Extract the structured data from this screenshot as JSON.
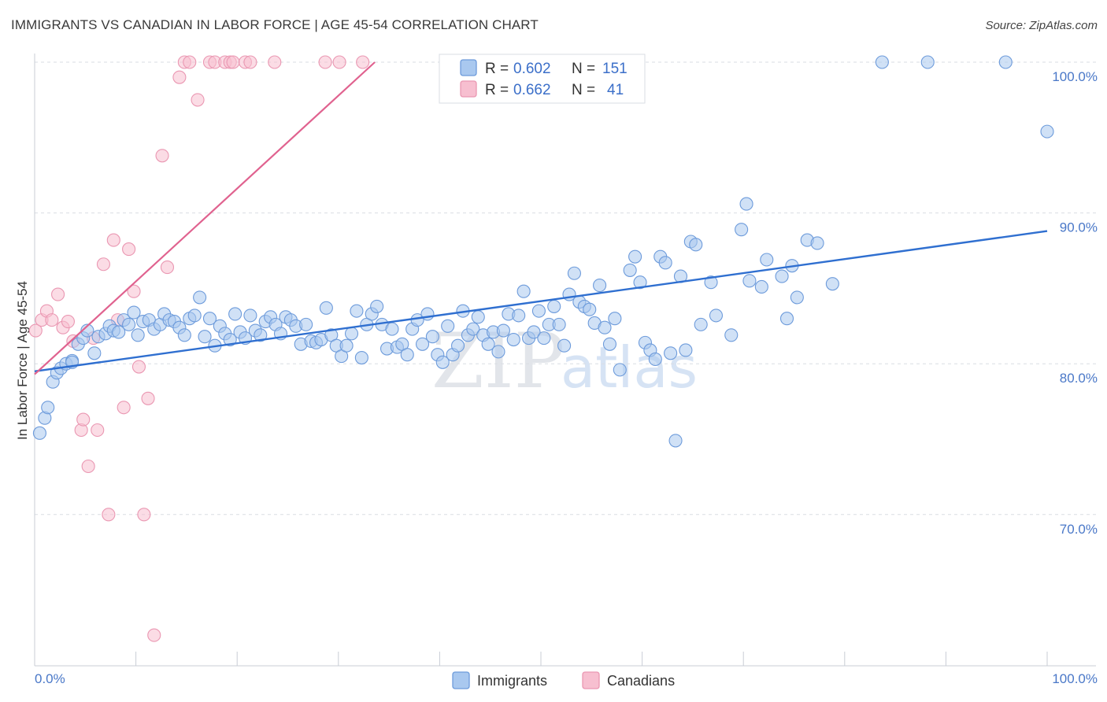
{
  "header": {
    "title": "IMMIGRANTS VS CANADIAN IN LABOR FORCE | AGE 45-54 CORRELATION CHART",
    "source": "Source: ZipAtlas.com"
  },
  "watermark": {
    "part1": "ZIP",
    "part2": "atlas"
  },
  "colors": {
    "immigrants_fill": "#a9c8ef",
    "immigrants_stroke": "#6d9bdb",
    "immigrants_line": "#2f6fd0",
    "canadians_fill": "#f7bfd0",
    "canadians_stroke": "#ea97b2",
    "canadians_line": "#e0628f",
    "grid": "#d9dde3",
    "tick_label": "#4a78c8"
  },
  "legend": {
    "rows": [
      {
        "r_label": "R =",
        "r_value": "0.602",
        "n_label": "N =",
        "n_value": "151"
      },
      {
        "r_label": "R =",
        "r_value": "0.662",
        "n_label": "N =",
        "n_value": "41"
      }
    ]
  },
  "bottom_legend": {
    "immigrants": "Immigrants",
    "canadians": "Canadians"
  },
  "chart_data": {
    "type": "scatter",
    "title": "IMMIGRANTS VS CANADIAN IN LABOR FORCE | AGE 45-54 CORRELATION CHART",
    "xlabel": "",
    "ylabel": "In Labor Force | Age 45-54",
    "xlim": [
      0,
      100
    ],
    "ylim": [
      60,
      100
    ],
    "x_tick_labels": [
      "0.0%",
      "100.0%"
    ],
    "y_ticks": [
      70,
      80,
      90,
      100
    ],
    "y_tick_labels": [
      "70.0%",
      "80.0%",
      "90.0%",
      "100.0%"
    ],
    "grid": true,
    "legend_position": "top-center",
    "series": [
      {
        "name": "Immigrants",
        "r": 0.602,
        "n": 151,
        "trend": {
          "x": [
            0,
            100
          ],
          "y": [
            79.5,
            88.8
          ]
        },
        "points": [
          [
            0.5,
            75.4
          ],
          [
            1.0,
            76.4
          ],
          [
            1.3,
            77.1
          ],
          [
            1.8,
            78.8
          ],
          [
            2.2,
            79.4
          ],
          [
            2.6,
            79.7
          ],
          [
            3.1,
            80.0
          ],
          [
            3.7,
            80.2
          ],
          [
            4.3,
            81.3
          ],
          [
            4.8,
            81.7
          ],
          [
            5.2,
            82.2
          ],
          [
            5.9,
            80.7
          ],
          [
            6.3,
            81.8
          ],
          [
            7.0,
            82.0
          ],
          [
            7.4,
            82.5
          ],
          [
            7.8,
            82.2
          ],
          [
            8.3,
            82.1
          ],
          [
            8.8,
            82.9
          ],
          [
            9.3,
            82.6
          ],
          [
            9.8,
            83.4
          ],
          [
            10.2,
            81.9
          ],
          [
            10.7,
            82.8
          ],
          [
            11.3,
            82.9
          ],
          [
            11.8,
            82.3
          ],
          [
            12.4,
            82.6
          ],
          [
            12.8,
            83.3
          ],
          [
            13.3,
            82.9
          ],
          [
            13.8,
            82.8
          ],
          [
            14.3,
            82.4
          ],
          [
            14.8,
            81.9
          ],
          [
            15.3,
            83.0
          ],
          [
            15.8,
            83.2
          ],
          [
            16.3,
            84.4
          ],
          [
            16.8,
            81.8
          ],
          [
            17.3,
            83.0
          ],
          [
            17.8,
            81.2
          ],
          [
            18.3,
            82.5
          ],
          [
            18.8,
            82.0
          ],
          [
            19.3,
            81.6
          ],
          [
            19.8,
            83.3
          ],
          [
            20.3,
            82.1
          ],
          [
            20.8,
            81.7
          ],
          [
            21.3,
            83.2
          ],
          [
            21.8,
            82.2
          ],
          [
            22.3,
            81.9
          ],
          [
            22.8,
            82.8
          ],
          [
            23.3,
            83.1
          ],
          [
            23.8,
            82.6
          ],
          [
            24.3,
            82.0
          ],
          [
            24.8,
            83.1
          ],
          [
            25.3,
            82.9
          ],
          [
            25.8,
            82.5
          ],
          [
            26.3,
            81.3
          ],
          [
            26.8,
            82.6
          ],
          [
            27.3,
            81.5
          ],
          [
            27.8,
            81.4
          ],
          [
            28.3,
            81.6
          ],
          [
            28.8,
            83.7
          ],
          [
            29.3,
            81.9
          ],
          [
            29.8,
            81.2
          ],
          [
            30.3,
            80.5
          ],
          [
            30.8,
            81.2
          ],
          [
            31.3,
            82.0
          ],
          [
            31.8,
            83.5
          ],
          [
            32.3,
            80.4
          ],
          [
            32.8,
            82.6
          ],
          [
            33.3,
            83.3
          ],
          [
            33.8,
            83.8
          ],
          [
            34.3,
            82.6
          ],
          [
            34.8,
            81.0
          ],
          [
            35.3,
            82.3
          ],
          [
            35.8,
            81.1
          ],
          [
            36.3,
            81.3
          ],
          [
            36.8,
            80.6
          ],
          [
            37.3,
            82.3
          ],
          [
            37.8,
            82.9
          ],
          [
            38.3,
            81.3
          ],
          [
            38.8,
            83.3
          ],
          [
            39.3,
            81.8
          ],
          [
            39.8,
            80.6
          ],
          [
            40.3,
            80.1
          ],
          [
            40.8,
            82.5
          ],
          [
            41.3,
            80.6
          ],
          [
            41.8,
            81.2
          ],
          [
            42.3,
            83.5
          ],
          [
            42.8,
            81.9
          ],
          [
            43.3,
            82.3
          ],
          [
            43.8,
            83.1
          ],
          [
            44.3,
            81.9
          ],
          [
            44.8,
            81.3
          ],
          [
            45.3,
            82.1
          ],
          [
            45.8,
            80.8
          ],
          [
            46.3,
            82.2
          ],
          [
            46.8,
            83.3
          ],
          [
            47.3,
            81.6
          ],
          [
            47.8,
            83.2
          ],
          [
            48.3,
            84.8
          ],
          [
            48.8,
            81.7
          ],
          [
            49.3,
            82.1
          ],
          [
            49.8,
            83.5
          ],
          [
            50.3,
            81.7
          ],
          [
            50.8,
            82.6
          ],
          [
            51.3,
            83.8
          ],
          [
            51.8,
            82.6
          ],
          [
            52.3,
            81.2
          ],
          [
            52.8,
            84.6
          ],
          [
            53.3,
            86.0
          ],
          [
            53.8,
            84.1
          ],
          [
            54.3,
            83.8
          ],
          [
            54.8,
            83.6
          ],
          [
            55.3,
            82.7
          ],
          [
            55.8,
            85.2
          ],
          [
            56.3,
            82.4
          ],
          [
            56.8,
            81.3
          ],
          [
            57.3,
            83.0
          ],
          [
            57.8,
            79.6
          ],
          [
            58.8,
            86.2
          ],
          [
            59.3,
            87.1
          ],
          [
            59.8,
            85.4
          ],
          [
            60.3,
            81.4
          ],
          [
            60.8,
            80.9
          ],
          [
            61.3,
            80.3
          ],
          [
            61.8,
            87.1
          ],
          [
            62.3,
            86.7
          ],
          [
            62.8,
            80.7
          ],
          [
            63.3,
            74.9
          ],
          [
            63.8,
            85.8
          ],
          [
            64.3,
            80.9
          ],
          [
            64.8,
            88.1
          ],
          [
            65.3,
            87.9
          ],
          [
            65.8,
            82.6
          ],
          [
            66.8,
            85.4
          ],
          [
            67.3,
            83.2
          ],
          [
            68.8,
            81.9
          ],
          [
            69.8,
            88.9
          ],
          [
            70.3,
            90.6
          ],
          [
            70.6,
            85.5
          ],
          [
            71.8,
            85.1
          ],
          [
            72.3,
            86.9
          ],
          [
            73.8,
            85.8
          ],
          [
            74.3,
            83.0
          ],
          [
            74.8,
            86.5
          ],
          [
            75.3,
            84.4
          ],
          [
            76.3,
            88.2
          ],
          [
            77.3,
            88.0
          ],
          [
            78.8,
            85.3
          ],
          [
            83.7,
            100.0
          ],
          [
            88.2,
            100.0
          ],
          [
            95.9,
            100.0
          ],
          [
            100.0,
            95.4
          ],
          [
            3.7,
            80.1
          ]
        ]
      },
      {
        "name": "Canadians",
        "r": 0.662,
        "n": 41,
        "trend": {
          "x": [
            0,
            33.6
          ],
          "y": [
            79.3,
            100.0
          ]
        },
        "points": [
          [
            0.1,
            82.2
          ],
          [
            0.7,
            82.9
          ],
          [
            1.2,
            83.5
          ],
          [
            1.7,
            82.9
          ],
          [
            2.3,
            84.6
          ],
          [
            2.8,
            82.4
          ],
          [
            3.3,
            82.8
          ],
          [
            3.8,
            81.5
          ],
          [
            4.6,
            75.6
          ],
          [
            4.8,
            76.3
          ],
          [
            5.3,
            73.2
          ],
          [
            5.8,
            81.7
          ],
          [
            6.2,
            75.6
          ],
          [
            6.8,
            86.6
          ],
          [
            7.3,
            70.0
          ],
          [
            7.8,
            88.2
          ],
          [
            8.2,
            82.9
          ],
          [
            8.8,
            77.1
          ],
          [
            9.3,
            87.6
          ],
          [
            9.8,
            84.8
          ],
          [
            10.3,
            79.8
          ],
          [
            10.8,
            70.0
          ],
          [
            11.2,
            77.7
          ],
          [
            11.8,
            62.0
          ],
          [
            12.6,
            93.8
          ],
          [
            13.1,
            86.4
          ],
          [
            14.3,
            99.0
          ],
          [
            14.8,
            100.0
          ],
          [
            15.3,
            100.0
          ],
          [
            16.1,
            97.5
          ],
          [
            17.3,
            100.0
          ],
          [
            17.8,
            100.0
          ],
          [
            18.8,
            100.0
          ],
          [
            19.3,
            100.0
          ],
          [
            19.6,
            100.0
          ],
          [
            20.8,
            100.0
          ],
          [
            21.3,
            100.0
          ],
          [
            23.7,
            100.0
          ],
          [
            28.7,
            100.0
          ],
          [
            30.1,
            100.0
          ],
          [
            32.4,
            100.0
          ]
        ]
      }
    ]
  }
}
